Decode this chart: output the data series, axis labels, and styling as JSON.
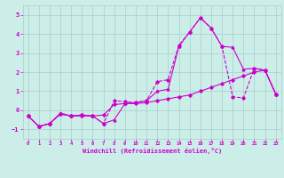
{
  "xlabel": "Windchill (Refroidissement éolien,°C)",
  "background_color": "#cceee8",
  "grid_color": "#aacccc",
  "line_color": "#cc00cc",
  "xlim": [
    -0.5,
    23.5
  ],
  "ylim": [
    -1.5,
    5.5
  ],
  "xticks": [
    0,
    1,
    2,
    3,
    4,
    5,
    6,
    7,
    8,
    9,
    10,
    11,
    12,
    13,
    14,
    15,
    16,
    17,
    18,
    19,
    20,
    21,
    22,
    23
  ],
  "yticks": [
    -1,
    0,
    1,
    2,
    3,
    4,
    5
  ],
  "curve1_x": [
    0,
    1,
    2,
    3,
    4,
    5,
    6,
    7,
    8,
    9,
    10,
    11,
    12,
    13,
    14,
    15,
    16,
    17,
    18,
    19,
    20,
    21,
    22,
    23
  ],
  "curve1_y": [
    -0.3,
    -0.85,
    -0.7,
    -0.2,
    -0.3,
    -0.25,
    -0.3,
    -0.25,
    0.3,
    0.35,
    0.35,
    0.4,
    0.5,
    0.6,
    0.7,
    0.8,
    1.0,
    1.2,
    1.4,
    1.6,
    1.8,
    2.0,
    2.1,
    0.85
  ],
  "curve2_x": [
    0,
    1,
    2,
    3,
    4,
    5,
    6,
    7,
    8,
    9,
    10,
    11,
    12,
    13,
    14,
    15,
    16,
    17,
    18,
    19,
    20,
    21,
    22,
    23
  ],
  "curve2_y": [
    -0.3,
    -0.85,
    -0.7,
    -0.2,
    -0.3,
    -0.25,
    -0.3,
    -0.7,
    0.5,
    0.45,
    0.4,
    0.5,
    1.5,
    1.6,
    3.4,
    4.1,
    4.85,
    4.3,
    3.35,
    0.7,
    0.65,
    2.2,
    2.1,
    0.85
  ],
  "curve3_x": [
    0,
    1,
    2,
    3,
    4,
    5,
    6,
    7,
    8,
    9,
    10,
    11,
    12,
    13,
    14,
    15,
    16,
    17,
    18,
    19,
    20,
    21,
    22,
    23
  ],
  "curve3_y": [
    -0.3,
    -0.85,
    -0.7,
    -0.15,
    -0.3,
    -0.3,
    -0.3,
    -0.7,
    -0.5,
    0.35,
    0.4,
    0.5,
    1.0,
    1.1,
    3.35,
    4.1,
    4.85,
    4.3,
    3.35,
    3.3,
    2.15,
    2.2,
    2.1,
    0.85
  ]
}
